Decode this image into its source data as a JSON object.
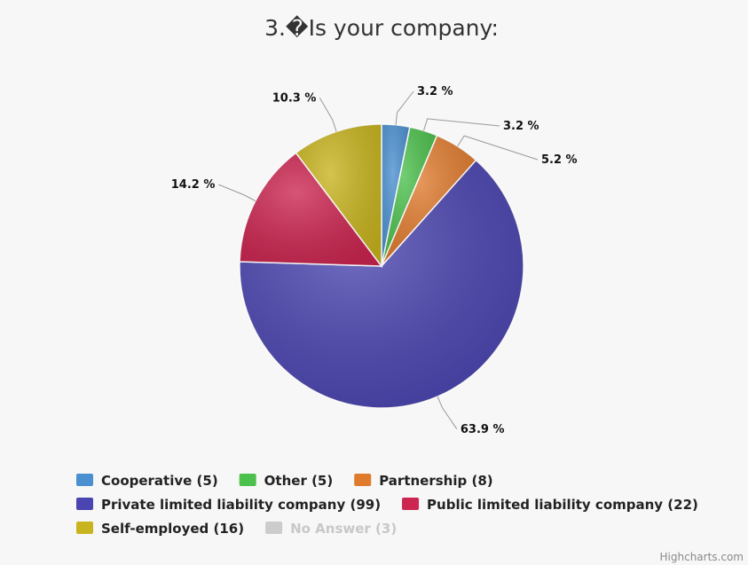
{
  "chart_data": {
    "type": "pie",
    "title": "3.�Is your company:",
    "series": [
      {
        "name": "Cooperative",
        "count": 5,
        "percent": 3.2,
        "color": "#4a90d0",
        "legend_label": "Cooperative (5)",
        "data_label": "3.2 %"
      },
      {
        "name": "Other",
        "count": 5,
        "percent": 3.2,
        "color": "#4cc04c",
        "legend_label": "Other (5)",
        "data_label": "3.2 %"
      },
      {
        "name": "Partnership",
        "count": 8,
        "percent": 5.2,
        "color": "#e07b2e",
        "legend_label": "Partnership (8)",
        "data_label": "5.2 %"
      },
      {
        "name": "Private limited liability company",
        "count": 99,
        "percent": 63.9,
        "color": "#4a45b0",
        "legend_label": "Private limited liability company (99)",
        "data_label": "63.9 %"
      },
      {
        "name": "Public limited liability company",
        "count": 22,
        "percent": 14.2,
        "color": "#cc2550",
        "legend_label": "Public limited liability company (22)",
        "data_label": "14.2 %"
      },
      {
        "name": "Self-employed",
        "count": 16,
        "percent": 10.3,
        "color": "#c8b41e",
        "legend_label": "Self-employed (16)",
        "data_label": "10.3 %"
      },
      {
        "name": "No Answer",
        "count": 3,
        "percent": 0,
        "color": "#cccccc",
        "legend_label": "No Answer (3)",
        "data_label": "",
        "visible": false
      }
    ],
    "legend_position": "bottom-left"
  },
  "credits": "Highcharts.com"
}
